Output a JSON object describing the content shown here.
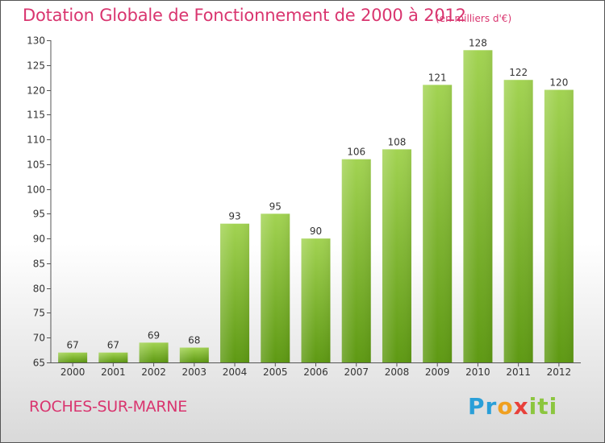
{
  "header": {
    "title": "Dotation Globale de Fonctionnement de 2000 à 2012",
    "subtitle": "(en milliers d'€)"
  },
  "footer": {
    "commune": "ROCHES-SUR-MARNE",
    "logo": "Proxiti"
  },
  "colors": {
    "accent": "#d9356f",
    "bar_light": "#9fd04f",
    "bar_dark": "#5f9a14"
  },
  "chart_data": {
    "type": "bar",
    "title": "Dotation Globale de Fonctionnement de 2000 à 2012",
    "subtitle": "(en milliers d'€)",
    "xlabel": "",
    "ylabel": "",
    "categories": [
      "2000",
      "2001",
      "2002",
      "2003",
      "2004",
      "2005",
      "2006",
      "2007",
      "2008",
      "2009",
      "2010",
      "2011",
      "2012"
    ],
    "values": [
      67,
      67,
      69,
      68,
      93,
      95,
      90,
      106,
      108,
      121,
      128,
      122,
      120
    ],
    "ylim": [
      65,
      130
    ],
    "yticks": [
      65,
      70,
      75,
      80,
      85,
      90,
      95,
      100,
      105,
      110,
      115,
      120,
      125,
      130
    ],
    "grid": false
  }
}
